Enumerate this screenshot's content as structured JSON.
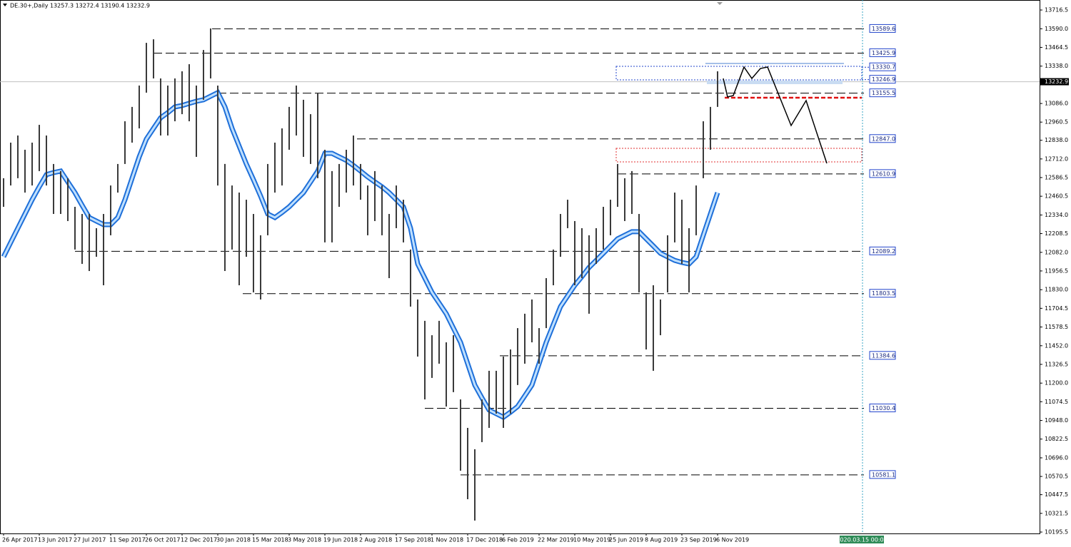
{
  "chart_data": {
    "type": "ohlc",
    "title": "DE.30+,Daily  13257.3 13272.4 13190.4 13232.9",
    "categories": [
      "26 Apr 2017",
      null,
      null,
      null,
      null,
      "13 Jun 2017",
      null,
      null,
      null,
      null,
      "27 Jul 2017",
      null,
      null,
      null,
      null,
      "11 Sep 2017",
      null,
      null,
      null,
      null,
      "26 Oct 2017",
      null,
      null,
      null,
      null,
      "12 Dec 2017",
      null,
      null,
      null,
      null,
      "30 Jan 2018",
      null,
      null,
      null,
      null,
      "15 Mar 2018",
      null,
      null,
      null,
      null,
      "3 May 2018",
      null,
      null,
      null,
      null,
      "19 Jun 2018",
      null,
      null,
      null,
      null,
      "2 Aug 2018",
      null,
      null,
      null,
      null,
      "17 Sep 2018",
      null,
      null,
      null,
      null,
      "1 Nov 2018",
      null,
      null,
      null,
      null,
      "17 Dec 2018",
      null,
      null,
      null,
      null,
      "6 Feb 2019",
      null,
      null,
      null,
      null,
      "22 Mar 2019",
      null,
      null,
      null,
      null,
      "10 May 2019",
      null,
      null,
      null,
      null,
      "25 Jun 2019",
      null,
      null,
      null,
      null,
      "8 Aug 2019",
      null,
      null,
      null,
      null,
      "23 Sep 2019",
      null,
      null,
      null,
      null,
      "6 Nov 2019"
    ],
    "series": [
      {
        "color": "#3a3a3a",
        "high": [
          12582,
          12822,
          12870,
          12774,
          12822,
          12942,
          12870,
          12678,
          12630,
          12582,
          12389,
          12341,
          12341,
          12245,
          12341,
          12533,
          12678,
          12966,
          13063,
          13207,
          13495,
          13519,
          13255,
          13207,
          13255,
          13303,
          13351,
          13207,
          13447,
          13592,
          13207,
          12678,
          12533,
          12485,
          12437,
          12341,
          12197,
          12678,
          12822,
          12918,
          13063,
          13207,
          13111,
          13014,
          13159,
          12774,
          12630,
          12678,
          12774,
          12870,
          12678,
          12533,
          12630,
          12533,
          12341,
          12533,
          12437,
          12101,
          11764,
          11620,
          11523,
          11620,
          11475,
          11523,
          11090,
          10898,
          10754,
          11090,
          11283,
          11283,
          11379,
          11427,
          11571,
          11668,
          11764,
          11571,
          11908,
          12101,
          12341,
          12437,
          12293,
          12245,
          12197,
          12245,
          12389,
          12437,
          12678,
          12582,
          12630,
          12341,
          11812,
          11860,
          11764,
          12197,
          12485,
          12437,
          12245,
          12533,
          12966,
          13063,
          13303
        ],
        "low": [
          12389,
          12533,
          12582,
          12485,
          12533,
          12630,
          12533,
          12341,
          12341,
          12293,
          12101,
          12004,
          11956,
          12052,
          11860,
          12197,
          12485,
          12678,
          12822,
          12918,
          13159,
          13255,
          12870,
          12870,
          12966,
          13014,
          12966,
          12726,
          13111,
          13255,
          12533,
          11956,
          12101,
          11860,
          12052,
          11812,
          11764,
          12197,
          12485,
          12533,
          12774,
          12870,
          12726,
          12678,
          12582,
          12149,
          12149,
          12389,
          12485,
          12533,
          12437,
          12197,
          12293,
          12197,
          11908,
          12245,
          12149,
          11716,
          11379,
          11090,
          11235,
          11331,
          11042,
          11139,
          10609,
          10417,
          10273,
          10802,
          10898,
          10994,
          10898,
          10994,
          11187,
          11331,
          11475,
          11331,
          11571,
          11860,
          12052,
          12245,
          11860,
          11908,
          11668,
          12004,
          12101,
          12197,
          12389,
          12293,
          12341,
          11812,
          11427,
          11283,
          11523,
          11812,
          12149,
          12004,
          11812,
          12197,
          12582,
          12774,
          13063
        ]
      }
    ],
    "moving_average": {
      "color": "#1e6fd9",
      "values": [
        12052,
        12149,
        12245,
        12341,
        12437,
        12524,
        12606,
        12620,
        12630,
        12557,
        12485,
        12399,
        12317,
        12293,
        12269,
        12269,
        12317,
        12437,
        12582,
        12726,
        12846,
        12918,
        12990,
        13024,
        13063,
        13072,
        13087,
        13101,
        13111,
        13135,
        13159,
        13063,
        12918,
        12798,
        12678,
        12572,
        12461,
        12341,
        12317,
        12351,
        12389,
        12437,
        12485,
        12557,
        12630,
        12750,
        12750,
        12726,
        12702,
        12668,
        12630,
        12591,
        12557,
        12524,
        12485,
        12437,
        12389,
        12245,
        12004,
        11908,
        11812,
        11740,
        11668,
        11571,
        11475,
        11331,
        11187,
        11100,
        11018,
        10994,
        10970,
        11004,
        11042,
        11114,
        11187,
        11331,
        11475,
        11596,
        11716,
        11788,
        11860,
        11918,
        11980,
        12028,
        12076,
        12125,
        12173,
        12197,
        12221,
        12221,
        12173,
        12125,
        12076,
        12052,
        12028,
        12014,
        12004,
        12052,
        12197,
        12341,
        12485
      ]
    },
    "levels": [
      13589.6,
      13425.9,
      13155.5,
      {
        "value": 12847,
        "label": "12847.0"
      },
      12610.9,
      12089.2,
      11803.5,
      11384.6,
      11030.4,
      10581.1
    ],
    "zone_levels": [
      13330.7,
      13246.9
    ],
    "current_price": 13232.9,
    "time_marker": "2020.03.15 00:00",
    "ylim": [
      10186,
      13784
    ],
    "yticks": [
      13716.5,
      {
        "value": 13590,
        "label": "13590.0"
      },
      13464.5,
      {
        "value": 13338,
        "label": "13338.0"
      },
      {
        "value": 13086,
        "label": "13086.0"
      },
      12960.5,
      {
        "value": 12838,
        "label": "12838.0"
      },
      {
        "value": 12712,
        "label": "12712.0"
      },
      12586.5,
      12460.5,
      {
        "value": 12334,
        "label": "12334.0"
      },
      12208.5,
      {
        "value": 12082,
        "label": "12082.0"
      },
      11956.5,
      {
        "value": 11830,
        "label": "11830.0"
      },
      11704.5,
      11578.5,
      {
        "value": 11452,
        "label": "11452.0"
      },
      11326.5,
      {
        "value": 11200,
        "label": "11200.0"
      },
      11074.5,
      {
        "value": 10948,
        "label": "10948.0"
      },
      10822.5,
      {
        "value": 10696,
        "label": "10696.0"
      },
      10570.5,
      10447.5,
      10321.5,
      10195.5
    ]
  }
}
